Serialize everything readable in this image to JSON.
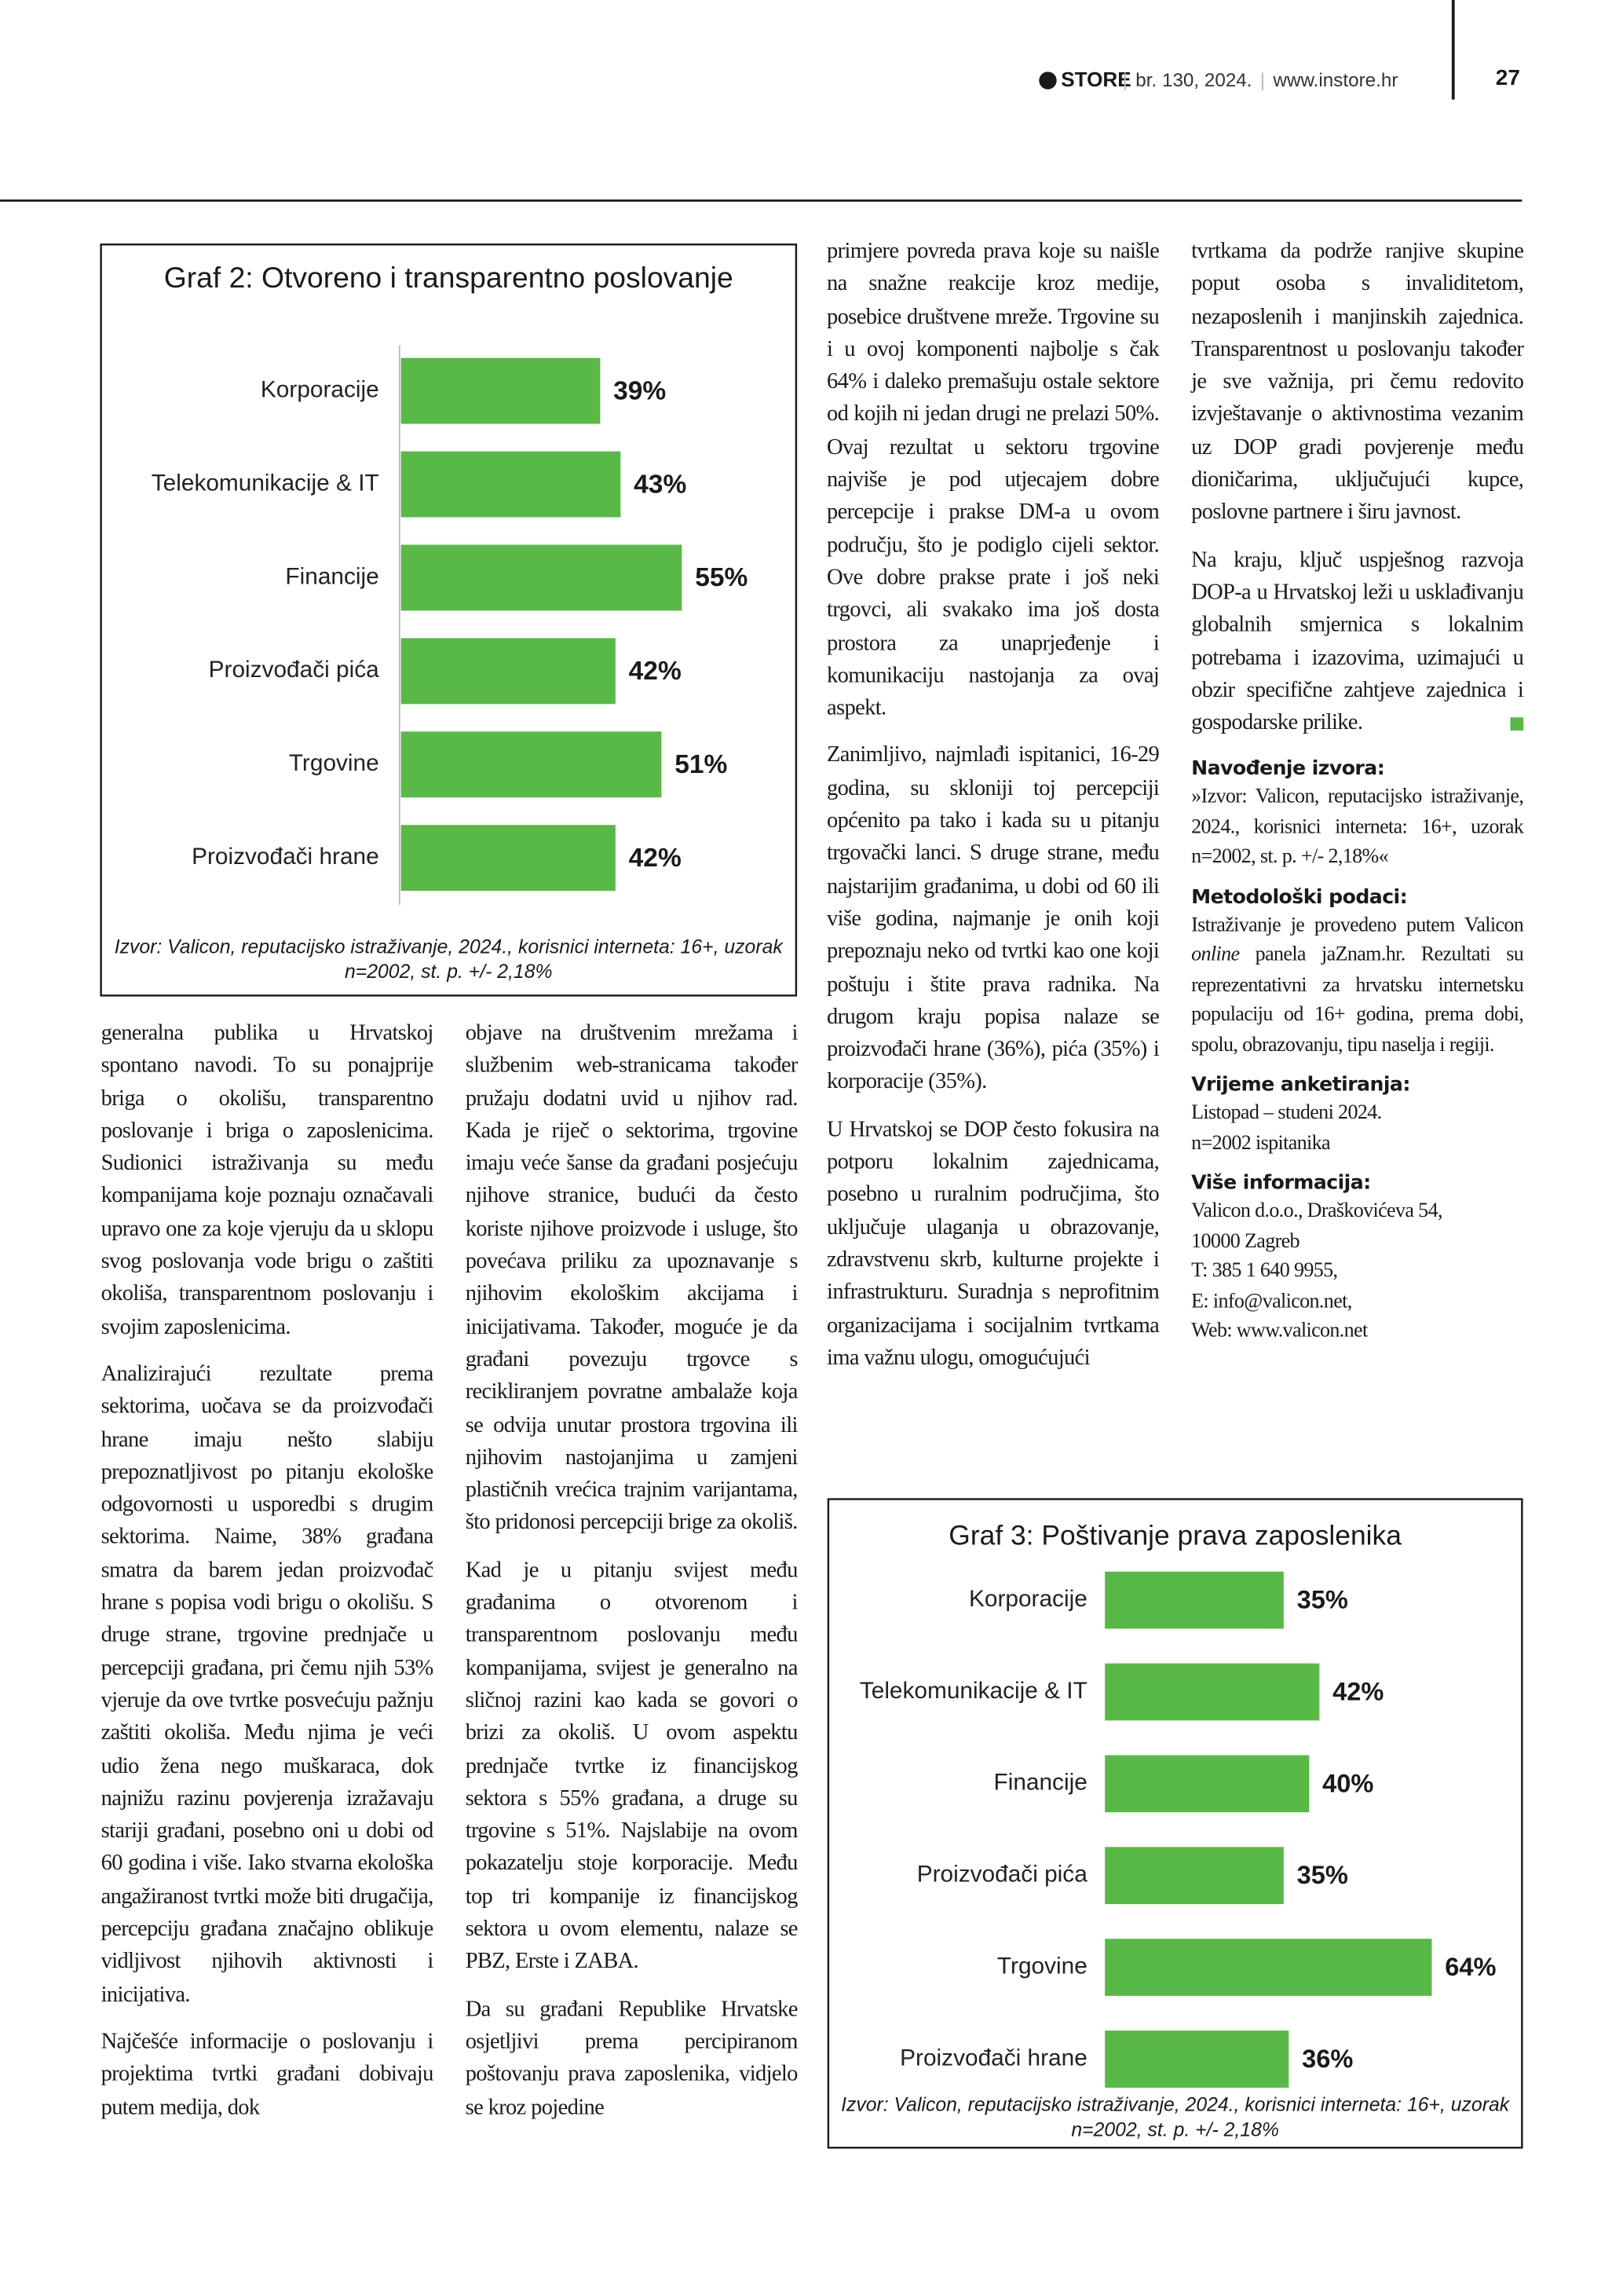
{
  "header": {
    "brand": "STORE",
    "issue": "br. 130, 2024.",
    "website": "www.instore.hr",
    "page_number": "27"
  },
  "chart_data": [
    {
      "type": "bar",
      "orientation": "horizontal",
      "title": "Graf 2: Otvoreno i transparentno poslovanje",
      "categories": [
        "Korporacije",
        "Telekomunikacije & IT",
        "Financije",
        "Proizvođači pića",
        "Trgovine",
        "Proizvođači hrane"
      ],
      "values": [
        39,
        43,
        55,
        42,
        51,
        42
      ],
      "value_labels": [
        "39%",
        "43%",
        "55%",
        "42%",
        "51%",
        "42%"
      ],
      "color": "#58b947",
      "source": "Izvor: Valicon, reputacijsko istraživanje, 2024., korisnici interneta: 16+, uzorak n=2002, st. p. +/- 2,18%"
    },
    {
      "type": "bar",
      "orientation": "horizontal",
      "title": "Graf 3: Poštivanje prava zaposlenika",
      "categories": [
        "Korporacije",
        "Telekomunikacije & IT",
        "Financije",
        "Proizvođači pića",
        "Trgovine",
        "Proizvođači hrane"
      ],
      "values": [
        35,
        42,
        40,
        35,
        64,
        36
      ],
      "value_labels": [
        "35%",
        "42%",
        "40%",
        "35%",
        "64%",
        "36%"
      ],
      "color": "#58b947",
      "source": "Izvor: Valicon, reputacijsko istraživanje, 2024., korisnici interneta: 16+, uzorak n=2002, st. p. +/- 2,18%"
    }
  ],
  "columns": [
    [
      "generalna publika u Hrvatskoj spontano navodi. To su ponajprije briga o okolišu, transparentno poslovanje i briga o zaposlenicima. Sudionici istraživanja su među kompanijama koje poznaju označavali upravo one za koje vjeruju da u sklopu svog poslovanja vode brigu o zaštiti okoliša, transparentnom poslovanju i svojim zaposlenicima.",
      "Analizirajući rezultate prema sektorima, uočava se da proizvođači hrane imaju nešto slabiju prepoznatljivost po pitanju ekološke odgovornosti u usporedbi s drugim sektorima. Naime, 38% građana smatra da barem jedan proizvođač hrane s popisa vodi brigu o okolišu. S druge strane, trgovine prednjače u percepciji građana, pri čemu njih 53% vjeruje da ove tvrtke posvećuju pažnju zaštiti okoliša. Među njima je veći udio žena nego muškaraca, dok najnižu razinu povjerenja izražavaju stariji građani, posebno oni u dobi od 60 godina i više. Iako stvarna ekološka angažiranost tvrtki može biti drugačija, percepciju građana značajno oblikuje vidljivost njihovih aktivnosti i inicijativa.",
      "Najčešće informacije o poslovanju i projektima tvrtki građani dobivaju putem medija, dok"
    ],
    [
      "objave na društvenim mrežama i službenim web-stranicama također pružaju dodatni uvid u njihov rad. Kada je riječ o sektorima, trgovine imaju veće šanse da građani posjećuju njihove stranice, budući da često koriste njihove proizvode i usluge, što povećava priliku za upoznavanje s njihovim ekološkim akcijama i inicijativama. Također, moguće je da građani povezuju trgovce s recikliranjem povratne ambalaže koja se odvija unutar prostora trgovina ili njihovim nastojanjima u zamjeni plastičnih vrećica trajnim varijantama, što pridonosi percepciji brige za okoliš.",
      "Kad je u pitanju svijest među građanima o otvorenom i transparentnom poslovanju među kompanijama, svijest je generalno na sličnoj razini kao kada se govori o brizi za okoliš. U ovom aspektu prednjače tvrtke iz financijskog sektora s 55% građana, a druge su trgovine s 51%. Najslabije na ovom pokazatelju stoje korporacije. Među top tri kompanije iz financijskog sektora u ovom elementu, nalaze se PBZ, Erste i ZABA.",
      "Da su građani Republike Hrvatske osjetljivi prema percipiranom poštovanju prava zaposlenika, vidjelo se kroz pojedine"
    ],
    [
      "primjere povreda prava koje su naišle na snažne reakcije kroz medije, posebice društvene mreže. Trgovine su i u ovoj komponenti najbolje s čak 64% i daleko premašuju ostale sektore od kojih ni jedan drugi ne prelazi 50%. Ovaj rezultat u sektoru trgovine najviše je pod utjecajem dobre percepcije i prakse DM-a u ovom području, što je podiglo cijeli sektor. Ove dobre prakse prate i još neki trgovci, ali svakako ima još dosta prostora za unaprjeđenje i komunikaciju nastojanja za ovaj aspekt.",
      "Zanimljivo, najmlađi ispitanici, 16-29 godina, su skloniji toj percepciji općenito pa tako i kada su u pitanju trgovački lanci. S druge strane, među najstarijim građanima, u dobi od 60 ili više godina, najmanje je onih koji prepoznaju neko od tvrtki kao one koji poštuju i štite prava radnika. Na drugom kraju popisa nalaze se proizvođači hrane (36%), pića (35%) i korporacije (35%).",
      "U Hrvatskoj se DOP često fokusira na potporu lokalnim zajednicama, posebno u ruralnim područjima, što uključuje ulaganja u obrazovanje, zdravstvenu skrb, kulturne projekte i infrastrukturu. Suradnja s neprofitnim organizacijama i socijalnim tvrtkama ima važnu ulogu, omogućujući"
    ],
    [
      "tvrtkama da podrže ranjive skupine poput osoba s invaliditetom, nezaposlenih i manjinskih zajednica. Transparentnost u poslovanju također je sve važnija, pri čemu redovito izvještavanje o aktivnostima vezanim uz DOP gradi povjerenje među dioničarima, uključujući kupce, poslovne partnere i širu javnost.",
      "Na kraju, ključ uspješnog razvoja DOP-a u Hrvatskoj leži u usklađivanju globalnih smjernica s lokalnim potrebama i izazovima, uzimajući u obzir specifične zahtjeve zajednica i gospodarske prilike."
    ]
  ],
  "info": [
    {
      "heading": "Navođenje izvora:",
      "lines": [
        "»Izvor: Valicon, reputacijsko istraživanje, 2024., korisnici interneta: 16+, uzorak n=2002, st. p. +/- 2,18%«"
      ]
    },
    {
      "heading": "Metodološki podaci:",
      "lines": [
        [
          "Istraživanje je provedeno putem Valicon ",
          "online",
          " panela jaZnam.hr. Rezultati su reprezentativni za hrvatsku internetsku populaciju od 16+ godina, prema dobi, spolu, obrazovanju, tipu naselja i regiji."
        ]
      ]
    },
    {
      "heading": "Vrijeme anketiranja:",
      "lines": [
        "Listopad – studeni 2024.",
        "n=2002 ispitanika"
      ]
    },
    {
      "heading": "Više informacija:",
      "lines": [
        "Valicon d.o.o., Draškovićeva 54,",
        "10000 Zagreb",
        "T: 385 1 640 9955,",
        "E: info@valicon.net,",
        "Web: www.valicon.net"
      ]
    }
  ]
}
